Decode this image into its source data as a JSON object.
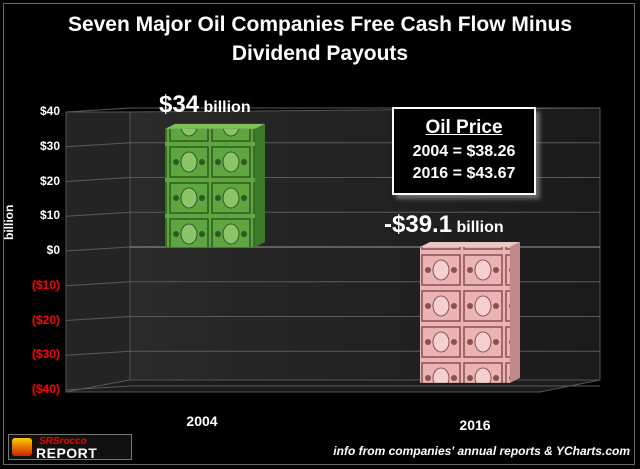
{
  "chart_data": {
    "type": "bar",
    "title_lines": [
      "Seven Major Oil Companies Free Cash Flow Minus",
      "Dividend Payouts"
    ],
    "ylabel": "billion",
    "categories": [
      "2004",
      "2016"
    ],
    "values": [
      34,
      -39.1
    ],
    "data_labels": [
      {
        "number": "$34",
        "unit": "billion"
      },
      {
        "number": "-$39.1",
        "unit": "billion"
      }
    ],
    "ylim": [
      -40,
      40
    ],
    "yticks": [
      {
        "value": 40,
        "label": "$40"
      },
      {
        "value": 30,
        "label": "$30"
      },
      {
        "value": 20,
        "label": "$20"
      },
      {
        "value": 10,
        "label": "$10"
      },
      {
        "value": 0,
        "label": "$0"
      },
      {
        "value": -10,
        "label": "($10)"
      },
      {
        "value": -20,
        "label": "($20)"
      },
      {
        "value": -30,
        "label": "($30)"
      },
      {
        "value": -40,
        "label": "($40)"
      }
    ],
    "grid": true,
    "colors": {
      "positive_bar": "#4e9a34",
      "negative_bar": "#e0a8a8",
      "negative_tick": "#ff0000",
      "positive_tick": "#ffffff"
    }
  },
  "annotation": {
    "title": "Oil Price",
    "lines": [
      "2004 = $38.26",
      "2016 = $43.67"
    ]
  },
  "logo": {
    "top": "SRSrocco",
    "bottom": "REPORT"
  },
  "source": "info from companies' annual reports & YCharts.com"
}
